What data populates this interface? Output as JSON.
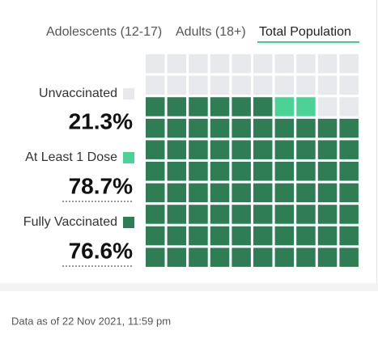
{
  "tabs": [
    "Adolescents (12-17)",
    "Adults (18+)",
    "Total Population"
  ],
  "chart_data": {
    "type": "waffle",
    "series": [
      {
        "name": "Unvaccinated",
        "color": "#e8e9ec",
        "values": [
          21.3
        ],
        "value_labels": [
          "21.3%"
        ]
      },
      {
        "name": "At Least 1 Dose",
        "color": "#4cd295",
        "values": [
          78.7
        ],
        "value_labels": [
          "78.7%"
        ]
      },
      {
        "name": "Fully Vaccinated",
        "color": "#2e7d55",
        "values": [
          76.6
        ],
        "value_labels": [
          "76.6%"
        ]
      }
    ]
  },
  "footer": "Data as of 22 Nov 2021, 11:59 pm"
}
